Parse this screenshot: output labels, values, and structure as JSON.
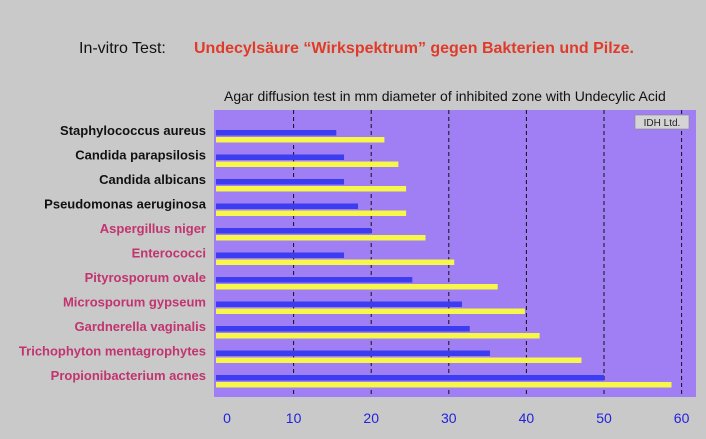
{
  "header": {
    "test_label": "In-vitro Test:",
    "title": "Undecylsäure “Wirkspektrum” gegen Bakterien und Pilze."
  },
  "chart_data": {
    "type": "bar",
    "subtitle": "Agar diffusion test in mm diameter of inhibited zone with Undecylic Acid",
    "watermark": "IDH Ltd.",
    "xlim": [
      0,
      62
    ],
    "x_ticks": [
      0,
      10,
      20,
      30,
      40,
      50,
      60
    ],
    "grid": "vertical dashed",
    "categories": [
      "Staphylococcus aureus",
      "Candida parapsilosis",
      "Candida albicans",
      "Pseudomonas aeruginosa",
      "Aspergillus niger",
      "Enterococci",
      "Pityrosporum ovale",
      "Microsporum gypseum",
      "Gardnerella vaginalis",
      "Trichophyton mentagrophytes",
      "Propionibacterium acnes"
    ],
    "category_colors": [
      "#111111",
      "#111111",
      "#111111",
      "#111111",
      "#c2336f",
      "#c2336f",
      "#c2336f",
      "#c2336f",
      "#c2336f",
      "#c2336f",
      "#c2336f"
    ],
    "series": [
      {
        "color": "#3c3cf0",
        "values": [
          15.5,
          16.5,
          16.5,
          18.3,
          20,
          16.5,
          25.3,
          31.7,
          32.7,
          35.3,
          50
        ]
      },
      {
        "color": "#f7f74a",
        "values": [
          21.7,
          23.5,
          24.5,
          24.5,
          27,
          30.7,
          36.3,
          39.8,
          41.7,
          47.1,
          58.7
        ]
      }
    ],
    "colors": {
      "plot_bg": "#a07ef3",
      "grid": "#111111",
      "tick_label": "#2222dd"
    }
  }
}
